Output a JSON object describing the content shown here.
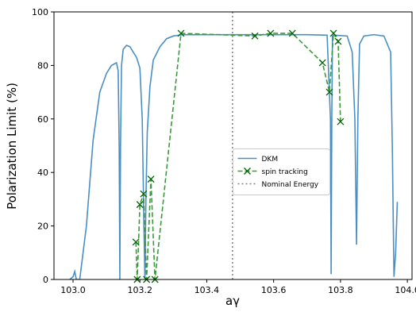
{
  "chart_data": {
    "type": "line",
    "x_label": "aγ",
    "y_label": "Polarization Limit  (%)",
    "xlim": [
      102.943,
      104.014
    ],
    "ylim": [
      0,
      100
    ],
    "xticks": [
      {
        "value": 103.0,
        "label": "103.0"
      },
      {
        "value": 103.2,
        "label": "103.2"
      },
      {
        "value": 103.4,
        "label": "103.4"
      },
      {
        "value": 103.6,
        "label": "103.6"
      },
      {
        "value": 103.8,
        "label": "103.8"
      },
      {
        "value": 104.0,
        "label": "104.0"
      }
    ],
    "yticks": [
      0,
      20,
      40,
      60,
      80,
      100
    ],
    "legend": "center",
    "series": [
      {
        "name": "DKM",
        "color": "#4a8fc4",
        "style": "solid",
        "marker": "none",
        "x": [
          102.99,
          103.0,
          103.005,
          103.01,
          103.02,
          103.04,
          103.06,
          103.08,
          103.1,
          103.115,
          103.13,
          103.135,
          103.138,
          103.14,
          103.142,
          103.145,
          103.15,
          103.16,
          103.17,
          103.18,
          103.19,
          103.2,
          103.207,
          103.212,
          103.215,
          103.218,
          103.222,
          103.23,
          103.24,
          103.26,
          103.28,
          103.3,
          103.33,
          103.4,
          103.5,
          103.6,
          103.7,
          103.76,
          103.77,
          103.772,
          103.774,
          103.776,
          103.78,
          103.82,
          103.835,
          103.843,
          103.848,
          103.852,
          103.857,
          103.87,
          103.9,
          103.93,
          103.95,
          103.955,
          103.96,
          103.965,
          103.97
        ],
        "values": [
          0,
          1,
          3,
          0,
          0,
          20,
          52,
          70,
          77,
          80,
          81,
          78,
          50,
          0,
          50,
          80,
          86,
          87.5,
          87,
          85,
          83,
          79,
          60,
          20,
          0,
          30,
          55,
          72,
          82,
          87,
          90,
          91,
          91.5,
          91.5,
          91.5,
          91.5,
          91.5,
          91.3,
          60,
          2,
          60,
          91,
          91.3,
          91,
          85,
          60,
          13,
          60,
          88,
          91,
          91.5,
          91,
          85,
          50,
          1,
          10,
          29
        ]
      },
      {
        "name": "spin tracking",
        "color": "#3a9a3a",
        "style": "dashed",
        "marker": "x",
        "marker_color": "#006400",
        "x": [
          103.188,
          103.192,
          103.2,
          103.211,
          103.22,
          103.233,
          103.245,
          103.323,
          103.544,
          103.591,
          103.656,
          103.746,
          103.767,
          103.779,
          103.793,
          103.8
        ],
        "values": [
          14,
          0,
          28,
          32,
          0,
          37.5,
          0,
          92,
          91,
          92,
          92,
          81,
          70,
          92,
          89,
          59
        ]
      }
    ],
    "vlines": [
      {
        "name": "Nominal Energy",
        "x": 103.477,
        "color": "#808080",
        "style": "dotted"
      }
    ]
  }
}
